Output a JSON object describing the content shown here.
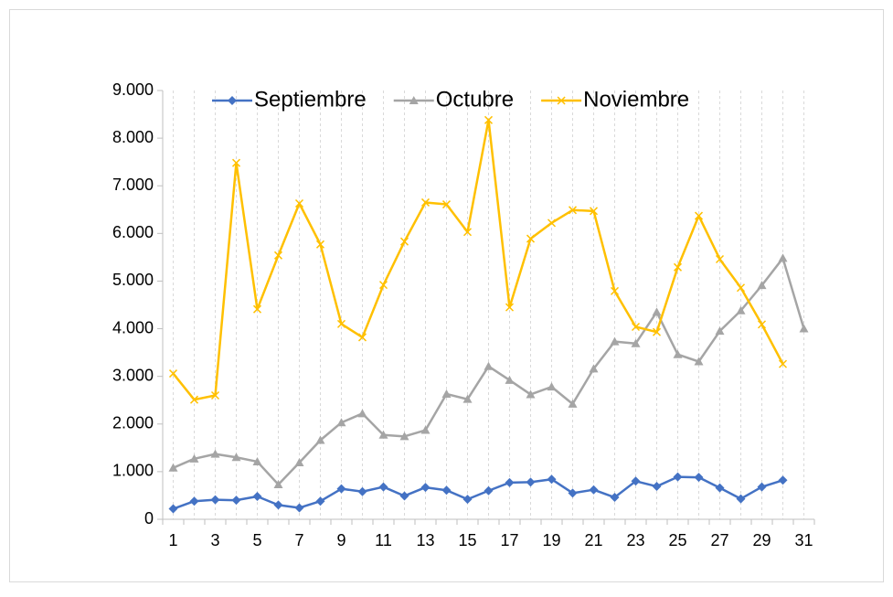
{
  "chart_data": {
    "type": "line",
    "categories": [
      1,
      null,
      3,
      null,
      5,
      null,
      7,
      null,
      9,
      null,
      11,
      null,
      13,
      null,
      15,
      null,
      17,
      null,
      19,
      null,
      21,
      null,
      23,
      null,
      25,
      null,
      27,
      null,
      29,
      null,
      31
    ],
    "ylim": [
      0,
      9000
    ],
    "yticks": [
      0,
      {
        "value": 1000,
        "label": "1.000"
      },
      {
        "value": 2000,
        "label": "2.000"
      },
      {
        "value": 3000,
        "label": "3.000"
      },
      {
        "value": 4000,
        "label": "4.000"
      },
      {
        "value": 5000,
        "label": "5.000"
      },
      {
        "value": 6000,
        "label": "6.000"
      },
      {
        "value": 7000,
        "label": "7.000"
      },
      {
        "value": 8000,
        "label": "8.000"
      },
      {
        "value": 9000,
        "label": "9.000"
      }
    ],
    "grid": true,
    "legend": "top",
    "series": [
      {
        "name": "Septiembre",
        "color": "#4472c4",
        "marker": "diamond",
        "values": [
          220,
          380,
          410,
          400,
          480,
          300,
          240,
          380,
          640,
          580,
          680,
          490,
          670,
          610,
          420,
          600,
          770,
          780,
          840,
          550,
          620,
          460,
          800,
          690,
          890,
          880,
          660,
          430,
          680,
          820,
          null
        ]
      },
      {
        "name": "Octubre",
        "color": "#a5a5a5",
        "marker": "triangle",
        "values": [
          1080,
          1270,
          1370,
          1300,
          1210,
          730,
          1190,
          1660,
          2030,
          2220,
          1770,
          1740,
          1870,
          2630,
          2520,
          3210,
          2920,
          2620,
          2780,
          2420,
          3160,
          3730,
          3690,
          4350,
          3460,
          3310,
          3950,
          4380,
          4910,
          5480,
          4000
        ]
      },
      {
        "name": "Noviembre",
        "color": "#ffc000",
        "marker": "x",
        "values": [
          3060,
          2510,
          2600,
          7480,
          4410,
          5540,
          6630,
          5770,
          4100,
          3820,
          4920,
          5830,
          6650,
          6610,
          6030,
          8380,
          4450,
          5890,
          6220,
          6490,
          6470,
          4790,
          4040,
          3930,
          5290,
          6370,
          5460,
          4860,
          4090,
          3260,
          null
        ]
      }
    ]
  }
}
